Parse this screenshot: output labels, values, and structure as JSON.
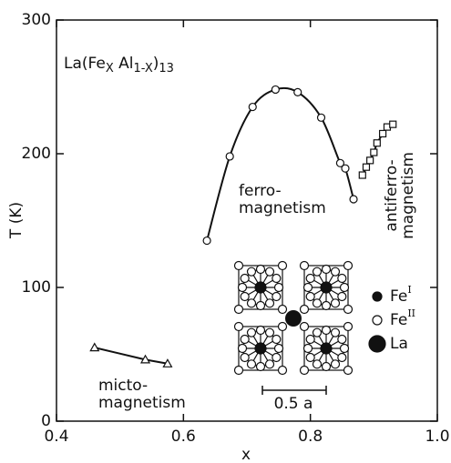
{
  "chart_data": {
    "type": "line",
    "title": [
      "La(Fe",
      "X",
      " Al",
      "1-X",
      ")",
      "13"
    ],
    "xlabel": "x",
    "ylabel": "T (K)",
    "xlim": [
      0.4,
      1.0
    ],
    "ylim": [
      0,
      300
    ],
    "xticks": [
      0.4,
      0.6,
      0.8,
      {
        "value": 1,
        "label": "1.0"
      }
    ],
    "yticks": [
      0,
      100,
      200,
      300
    ],
    "series": [
      {
        "marker": "circle",
        "color": "#111",
        "smooth": true,
        "x": [
          0.637,
          0.673,
          0.709,
          0.745,
          0.78,
          0.817,
          0.847,
          0.855,
          0.868
        ],
        "values": [
          135,
          198,
          235,
          248,
          246,
          227,
          193,
          189,
          166
        ]
      },
      {
        "marker": "square",
        "color": "#111",
        "smooth": false,
        "x": [
          0.882,
          0.888,
          0.894,
          0.9,
          0.905,
          0.914,
          0.921,
          0.93
        ],
        "values": [
          184,
          190,
          195,
          201,
          208,
          215,
          220,
          222
        ]
      },
      {
        "marker": "triangle",
        "color": "#111",
        "smooth": false,
        "x": [
          0.46,
          0.54,
          0.575
        ],
        "values": [
          55,
          46,
          43
        ]
      }
    ],
    "annotations": [
      "ferro-",
      "magnetism",
      "antiferro-",
      "magnetism",
      "micto-",
      "magnetism"
    ],
    "legend": [
      {
        "label": "Fe",
        "sup": "I"
      },
      {
        "label": "Fe",
        "sup": "II"
      },
      {
        "label": "La"
      }
    ],
    "scale_bar": "0.5 a"
  }
}
